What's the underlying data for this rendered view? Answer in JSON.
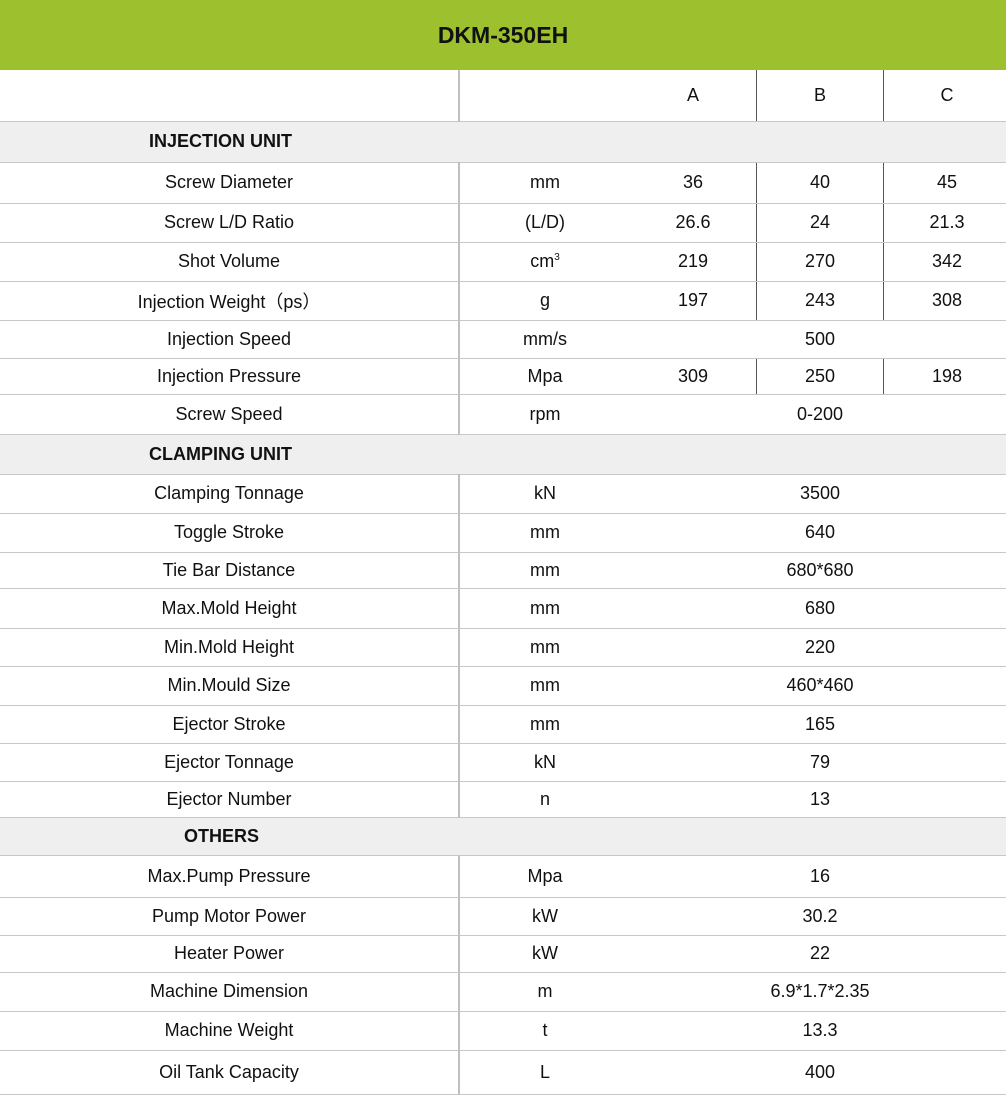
{
  "title": "DKM-350EH",
  "columns": [
    "",
    "",
    "A",
    "B",
    "C"
  ],
  "colors": {
    "header_bg": "#9dc12e",
    "section_bg": "#efefef"
  },
  "sections": [
    {
      "name": "INJECTION UNIT",
      "rows": [
        {
          "label": "Screw Diameter",
          "unit": "mm",
          "values": [
            "36",
            "40",
            "45"
          ]
        },
        {
          "label": "Screw L/D Ratio",
          "unit": "(L/D)",
          "values": [
            "26.6",
            "24",
            "21.3"
          ]
        },
        {
          "label": "Shot Volume",
          "unit": "cm",
          "unit_sup": "3",
          "values": [
            "219",
            "270",
            "342"
          ]
        },
        {
          "label": "Injection Weight（ps）",
          "unit": "g",
          "values": [
            "197",
            "243",
            "308"
          ]
        },
        {
          "label": "Injection Speed",
          "unit": "mm/s",
          "values": [
            "500"
          ]
        },
        {
          "label": "Injection Pressure",
          "unit": "Mpa",
          "values": [
            "309",
            "250",
            "198"
          ]
        },
        {
          "label": "Screw Speed",
          "unit": "rpm",
          "values": [
            "0-200"
          ]
        }
      ]
    },
    {
      "name": "CLAMPING UNIT",
      "rows": [
        {
          "label": "Clamping Tonnage",
          "unit": "kN",
          "values": [
            "3500"
          ]
        },
        {
          "label": "Toggle Stroke",
          "unit": "mm",
          "values": [
            "640"
          ]
        },
        {
          "label": "Tie Bar Distance",
          "unit": "mm",
          "values": [
            "680*680"
          ]
        },
        {
          "label": "Max.Mold Height",
          "unit": "mm",
          "values": [
            "680"
          ]
        },
        {
          "label": "Min.Mold Height",
          "unit": "mm",
          "values": [
            "220"
          ]
        },
        {
          "label": "Min.Mould Size",
          "unit": "mm",
          "values": [
            "460*460"
          ]
        },
        {
          "label": "Ejector Stroke",
          "unit": "mm",
          "values": [
            "165"
          ]
        },
        {
          "label": "Ejector Tonnage",
          "unit": "kN",
          "values": [
            "79"
          ]
        },
        {
          "label": "Ejector Number",
          "unit": "n",
          "values": [
            "13"
          ]
        }
      ]
    },
    {
      "name": "OTHERS",
      "rows": [
        {
          "label": "Max.Pump Pressure",
          "unit": "Mpa",
          "values": [
            "16"
          ]
        },
        {
          "label": "Pump Motor Power",
          "unit": "kW",
          "values": [
            "30.2"
          ]
        },
        {
          "label": "Heater Power",
          "unit": "kW",
          "values": [
            "22"
          ]
        },
        {
          "label": "Machine Dimension",
          "unit": "m",
          "values": [
            "6.9*1.7*2.35"
          ]
        },
        {
          "label": "Machine Weight",
          "unit": "t",
          "values": [
            "13.3"
          ]
        },
        {
          "label": "Oil Tank Capacity",
          "unit": "L",
          "values": [
            "400"
          ]
        }
      ]
    }
  ]
}
